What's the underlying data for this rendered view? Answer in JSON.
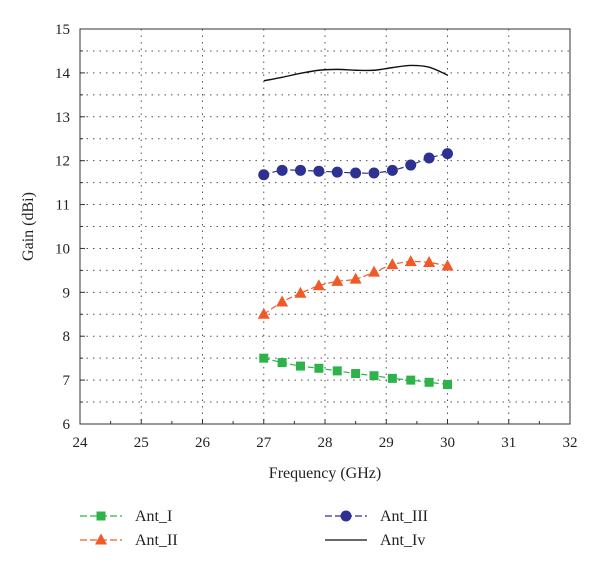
{
  "chart_data": {
    "type": "line",
    "title": "",
    "xlabel": "Frequency (GHz)",
    "ylabel": "Gain (dBi)",
    "xlim": [
      24,
      32
    ],
    "ylim": [
      6,
      15
    ],
    "xticks": [
      "24",
      "25",
      "26",
      "27",
      "28",
      "29",
      "30",
      "31",
      "32"
    ],
    "yticks": [
      "6",
      "7",
      "8",
      "9",
      "10",
      "11",
      "12",
      "13",
      "14",
      "15"
    ],
    "grid": true,
    "legend_position": "bottom",
    "series": [
      {
        "name": "Ant_I",
        "color": "#2db34a",
        "marker": "square",
        "x": [
          27.0,
          27.3,
          27.6,
          27.9,
          28.2,
          28.5,
          28.8,
          29.1,
          29.4,
          29.7,
          30.0
        ],
        "y": [
          7.5,
          7.4,
          7.32,
          7.27,
          7.21,
          7.15,
          7.1,
          7.04,
          7.0,
          6.95,
          6.9
        ]
      },
      {
        "name": "Ant_II",
        "color": "#f05a28",
        "marker": "triangle",
        "x": [
          27.0,
          27.3,
          27.6,
          27.9,
          28.2,
          28.5,
          28.8,
          29.1,
          29.4,
          29.7,
          30.0
        ],
        "y": [
          8.5,
          8.78,
          8.98,
          9.15,
          9.25,
          9.3,
          9.46,
          9.63,
          9.7,
          9.68,
          9.6
        ]
      },
      {
        "name": "Ant_III",
        "color": "#2e3192",
        "marker": "circle",
        "x": [
          27.0,
          27.3,
          27.6,
          27.9,
          28.2,
          28.5,
          28.8,
          29.1,
          29.4,
          29.7,
          30.0
        ],
        "y": [
          11.68,
          11.78,
          11.78,
          11.76,
          11.74,
          11.72,
          11.72,
          11.78,
          11.9,
          12.06,
          12.16
        ]
      },
      {
        "name": "Ant_Iv",
        "color": "#111111",
        "marker": "none",
        "x": [
          27.0,
          27.3,
          27.6,
          27.9,
          28.2,
          28.5,
          28.8,
          29.1,
          29.4,
          29.7,
          30.0
        ],
        "y": [
          13.82,
          13.9,
          13.99,
          14.06,
          14.08,
          14.06,
          14.06,
          14.12,
          14.17,
          14.13,
          13.95
        ]
      }
    ]
  }
}
